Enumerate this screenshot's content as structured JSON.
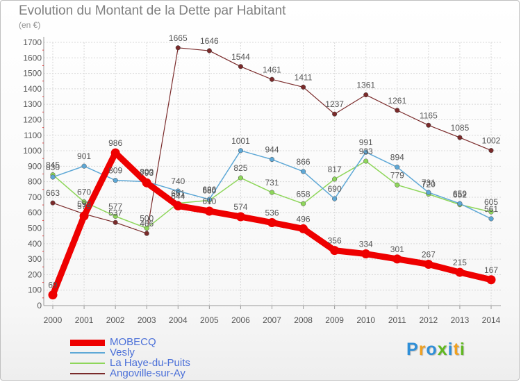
{
  "chart_data": {
    "type": "line",
    "title": "Evolution du Montant de la Dette par Habitant",
    "unit": "(en €)",
    "x": [
      "2000",
      "2001",
      "2002",
      "2003",
      "2004",
      "2005",
      "2006",
      "2007",
      "2008",
      "2009",
      "2010",
      "2011",
      "2012",
      "2013",
      "2014"
    ],
    "yticks": [
      "0",
      "100",
      "200",
      "300",
      "400",
      "500",
      "600",
      "700",
      "800",
      "900",
      "1000",
      "1100",
      "1200",
      "1300",
      "1400",
      "1500",
      "1600",
      "1700"
    ],
    "ylim": [
      0,
      1700
    ],
    "grid": true,
    "legend_position": "bottom-left",
    "series": [
      {
        "name": "MOBECQ",
        "color": "#ee0000",
        "width": 9,
        "values": [
          69,
          579,
          986,
          793,
          644,
          610,
          574,
          536,
          496,
          356,
          334,
          301,
          267,
          215,
          167
        ],
        "labels": [
          "69",
          "579",
          "986",
          "793",
          "644",
          "610",
          "574",
          "536",
          "496",
          "356",
          "334",
          "301",
          "267",
          "215",
          "167"
        ]
      },
      {
        "name": "Vesly",
        "color": "#5ea8d6",
        "width": 1.5,
        "values": [
          830,
          901,
          809,
          800,
          740,
          686,
          1001,
          944,
          866,
          690,
          991,
          894,
          731,
          659,
          561
        ],
        "labels": [
          "830",
          "901",
          "809",
          "800",
          "740",
          "686",
          "1001",
          "944",
          "866",
          "690",
          "991",
          "894",
          "731",
          "659",
          "561"
        ]
      },
      {
        "name": "La Haye-du-Puits",
        "color": "#8ed65a",
        "width": 1.5,
        "values": [
          845,
          670,
          577,
          500,
          661,
          680,
          825,
          731,
          658,
          817,
          933,
          779,
          720,
          652,
          605
        ],
        "labels": [
          "845",
          "670",
          "577",
          "500",
          "661",
          "680",
          "825",
          "731",
          "658",
          "817",
          "933",
          "779",
          "720",
          "652",
          "605"
        ]
      },
      {
        "name": "Angoville-sur-Ay",
        "color": "#7a2a2a",
        "width": 1.2,
        "values": [
          663,
          592,
          537,
          466,
          1665,
          1646,
          1544,
          1461,
          1411,
          1237,
          1361,
          1261,
          1165,
          1085,
          1002
        ],
        "labels": [
          "663",
          "592",
          "537",
          "466",
          "1665",
          "1646",
          "1544",
          "1461",
          "1411",
          "1237",
          "1361",
          "1261",
          "1165",
          "1085",
          "1002"
        ]
      }
    ]
  },
  "brand": {
    "letters": [
      "P",
      "r",
      "o",
      "x",
      "i",
      "t",
      "i"
    ],
    "colors": [
      "#2f8fd8",
      "#f0a020",
      "#2f8fd8",
      "#60b820",
      "#2f8fd8",
      "#f0a020",
      "#60b820"
    ]
  }
}
